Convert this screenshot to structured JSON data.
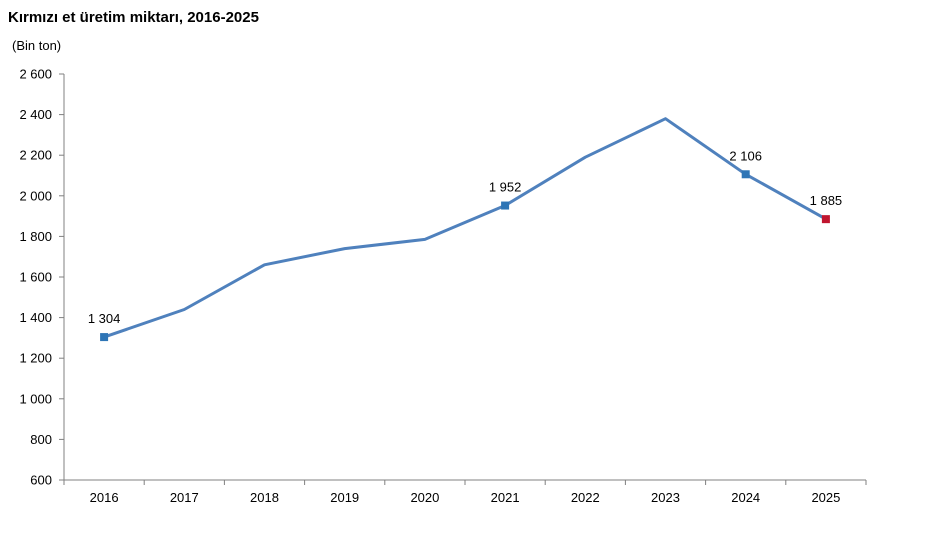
{
  "chart_data": {
    "type": "line",
    "title": "Kırmızı et üretim miktarı, 2016-2025",
    "ylabel": "(Bin ton)",
    "xlabel": "",
    "categories": [
      "2016",
      "2017",
      "2018",
      "2019",
      "2020",
      "2021",
      "2022",
      "2023",
      "2024",
      "2025"
    ],
    "yticks": [
      "600",
      "800",
      "1 000",
      "1 200",
      "1 400",
      "1 600",
      "1 800",
      "2 000",
      "2 200",
      "2 400",
      "2 600"
    ],
    "ylim": [
      600,
      2600
    ],
    "grid": false,
    "legend": "none",
    "series": [
      {
        "values": [
          1304,
          1440,
          1660,
          1740,
          1785,
          1952,
          2190,
          2380,
          2106,
          1885
        ],
        "color": "#4f81bd"
      }
    ],
    "data_labels": [
      {
        "index": 0,
        "text": "1 304"
      },
      {
        "index": 5,
        "text": "1 952"
      },
      {
        "index": 8,
        "text": "2 106"
      },
      {
        "index": 9,
        "text": "1 885"
      }
    ],
    "marker_colors": {
      "highlight": "#2e75b6",
      "last": "#c0152f"
    }
  }
}
